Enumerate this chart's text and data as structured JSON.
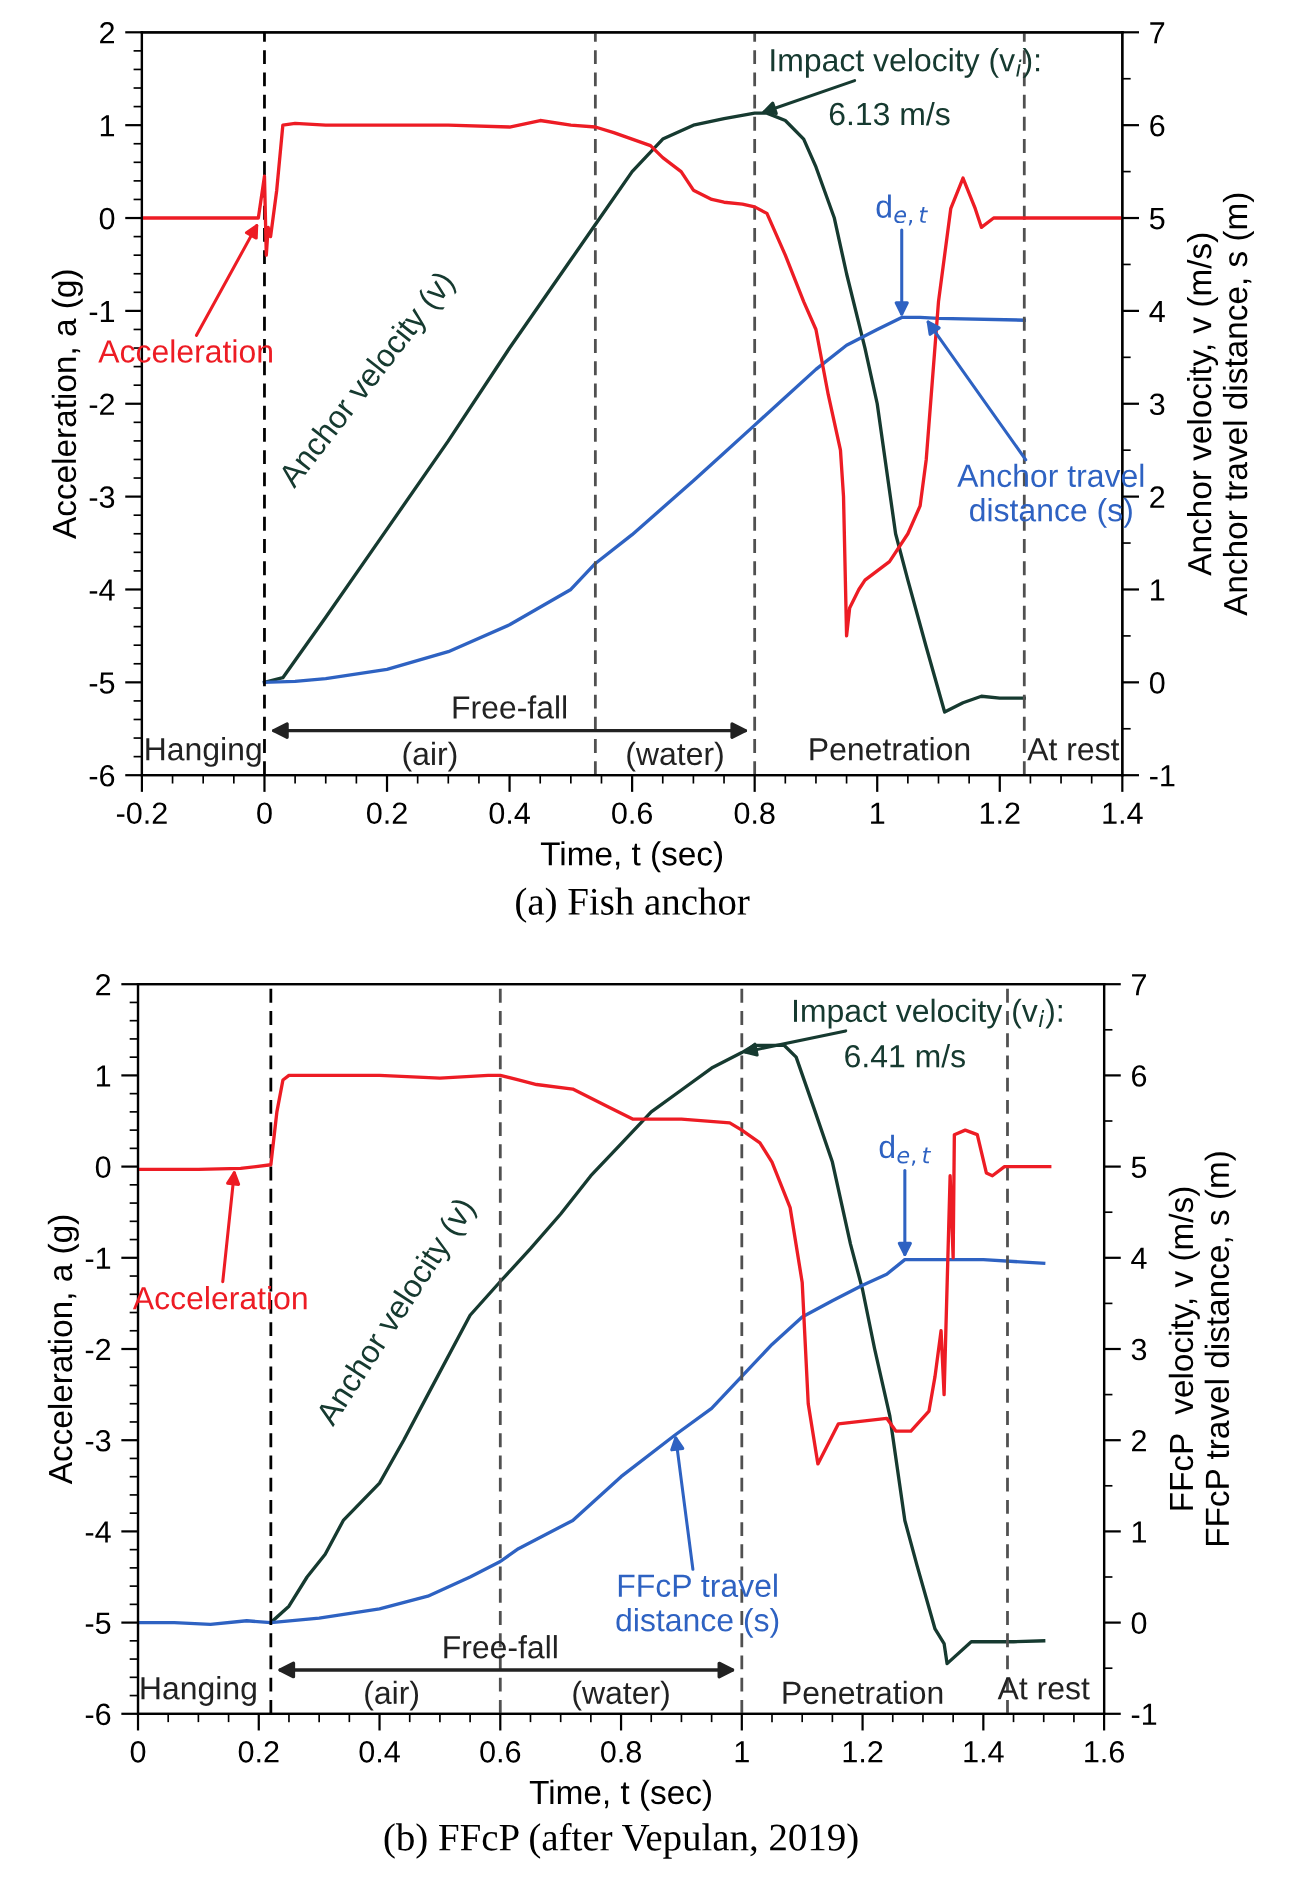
{
  "chart_data": [
    {
      "type": "line",
      "title": "(a) Fish anchor",
      "xlabel": "Time, t (sec)",
      "ylabel": "Acceleration, a (g)",
      "y2label": "Anchor velocity, v (m/s)\nAnchor travel distance, s (m)",
      "xlim": [
        -0.2,
        1.4
      ],
      "xticks": [
        -0.2,
        0,
        0.2,
        0.4,
        0.6,
        0.8,
        1,
        1.2,
        1.4
      ],
      "ylim": [
        -6,
        2
      ],
      "yticks": [
        -6,
        -5,
        -4,
        -3,
        -2,
        -1,
        0,
        1,
        2
      ],
      "y2lim": [
        -1,
        7
      ],
      "y2ticks": [
        -1,
        0,
        1,
        2,
        3,
        4,
        5,
        6,
        7
      ],
      "grid": false,
      "legend": false,
      "line_style": "solid",
      "marker": "none",
      "series": [
        {
          "color": "#ed1c24",
          "x": [
            -0.2,
            -0.1,
            -0.01,
            0,
            0.003,
            0.006,
            0.01,
            0.02,
            0.03,
            0.05,
            0.1,
            0.2,
            0.3,
            0.4,
            0.45,
            0.5,
            0.54,
            0.57,
            0.6,
            0.63,
            0.65,
            0.68,
            0.7,
            0.73,
            0.75,
            0.78,
            0.8,
            0.82,
            0.85,
            0.88,
            0.9,
            0.92,
            0.94,
            0.945,
            0.95,
            0.955,
            0.97,
            0.98,
            1.0,
            1.02,
            1.03,
            1.05,
            1.07,
            1.08,
            1.1,
            1.12,
            1.14,
            1.16,
            1.17,
            1.19,
            1.22,
            1.3,
            1.4
          ],
          "values": [
            0,
            0,
            0,
            0.45,
            -0.4,
            -0.1,
            -0.2,
            0.3,
            1.0,
            1.02,
            1.0,
            1.0,
            1.0,
            0.98,
            1.05,
            1.0,
            0.98,
            0.92,
            0.85,
            0.78,
            0.65,
            0.5,
            0.3,
            0.2,
            0.17,
            0.15,
            0.12,
            0.05,
            -0.4,
            -0.9,
            -1.2,
            -1.9,
            -2.5,
            -3.0,
            -4.5,
            -4.2,
            -4.0,
            -3.9,
            -3.8,
            -3.7,
            -3.6,
            -3.4,
            -3.1,
            -2.6,
            -0.9,
            0.1,
            0.43,
            0.1,
            -0.1,
            0,
            0,
            0,
            0
          ]
        },
        {
          "color": "#163a30",
          "axis": "y2",
          "x": [
            0,
            0.03,
            0.1,
            0.2,
            0.3,
            0.4,
            0.5,
            0.54,
            0.6,
            0.65,
            0.7,
            0.75,
            0.8,
            0.82,
            0.85,
            0.88,
            0.9,
            0.93,
            0.95,
            0.98,
            1.0,
            1.03,
            1.05,
            1.08,
            1.11,
            1.14,
            1.17,
            1.2,
            1.24
          ],
          "values": [
            0,
            0.05,
            0.7,
            1.65,
            2.6,
            3.6,
            4.55,
            4.93,
            5.5,
            5.85,
            6.0,
            6.07,
            6.13,
            6.13,
            6.05,
            5.85,
            5.55,
            5.0,
            4.4,
            3.6,
            3.0,
            1.6,
            1.1,
            0.38,
            -0.32,
            -0.22,
            -0.15,
            -0.17,
            -0.17
          ]
        },
        {
          "color": "#2e62c2",
          "axis": "y2",
          "x": [
            0,
            0.05,
            0.1,
            0.2,
            0.3,
            0.4,
            0.5,
            0.54,
            0.6,
            0.7,
            0.75,
            0.8,
            0.85,
            0.9,
            0.95,
            1.0,
            1.04,
            1.07,
            1.1,
            1.24
          ],
          "values": [
            0,
            0.01,
            0.04,
            0.14,
            0.33,
            0.62,
            1.0,
            1.28,
            1.59,
            2.17,
            2.47,
            2.77,
            3.07,
            3.37,
            3.63,
            3.8,
            3.93,
            3.93,
            3.92,
            3.9
          ]
        }
      ],
      "ref_lines": [
        {
          "axis": "x",
          "value": 0,
          "color": "#000000",
          "line_style": "dashed"
        },
        {
          "axis": "x",
          "value": 0.54,
          "color": "#505050",
          "line_style": "dashed"
        },
        {
          "axis": "x",
          "value": 0.8,
          "color": "#505050",
          "line_style": "dashed"
        },
        {
          "axis": "x",
          "value": 1.24,
          "color": "#505050",
          "line_style": "dashed"
        }
      ],
      "annotations": [
        {
          "text": "Acceleration",
          "x": -0.01,
          "y": -0.05
        },
        {
          "text": "Impact velocity (v$_{i}$):",
          "x": 0.81,
          "y": 1.13
        },
        "6.13 m/s",
        "Anchor velocity (v)",
        {
          "text": "d$_{e,t}$",
          "x": 1.04,
          "y": -1.07
        },
        {
          "text": "Anchor travel\ndistance (s)",
          "x": 1.08,
          "y": -1.09
        },
        "Hanging",
        "Free-fall",
        "(air)",
        "(water)",
        "Penetration",
        "At rest"
      ]
    },
    {
      "type": "line",
      "title": "(b) FFcP (after Vepulan, 2019)",
      "xlabel": "Time, t (sec)",
      "ylabel": "Acceleration, a (g)",
      "y2label": "FFcP  velocity, v (m/s)\nFFcP travel distance, s (m)",
      "xlim": [
        0,
        1.6
      ],
      "xticks": [
        0,
        0.2,
        0.4,
        0.6,
        0.8,
        1,
        1.2,
        1.4,
        1.6
      ],
      "ylim": [
        -6,
        2
      ],
      "yticks": [
        -6,
        -5,
        -4,
        -3,
        -2,
        -1,
        0,
        1,
        2
      ],
      "y2lim": [
        -1,
        7
      ],
      "y2ticks": [
        -1,
        0,
        1,
        2,
        3,
        4,
        5,
        6,
        7
      ],
      "grid": false,
      "legend": false,
      "line_style": "solid",
      "marker": "none",
      "series": [
        {
          "color": "#ed1c24",
          "x": [
            0,
            0.1,
            0.17,
            0.22,
            0.23,
            0.24,
            0.25,
            0.3,
            0.4,
            0.5,
            0.58,
            0.6,
            0.63,
            0.66,
            0.72,
            0.78,
            0.82,
            0.85,
            0.9,
            0.98,
            1.0,
            1.03,
            1.05,
            1.08,
            1.1,
            1.11,
            1.126,
            1.16,
            1.24,
            1.255,
            1.28,
            1.31,
            1.32,
            1.33,
            1.335,
            1.345,
            1.35,
            1.352,
            1.37,
            1.39,
            1.405,
            1.415,
            1.435,
            1.51
          ],
          "values": [
            -0.03,
            -0.03,
            -0.02,
            0.02,
            0.6,
            0.95,
            1.0,
            1.0,
            1.0,
            0.97,
            1.0,
            1.0,
            0.95,
            0.9,
            0.85,
            0.65,
            0.52,
            0.52,
            0.52,
            0.48,
            0.4,
            0.26,
            0.05,
            -0.45,
            -1.27,
            -2.6,
            -3.26,
            -2.82,
            -2.76,
            -2.9,
            -2.9,
            -2.68,
            -2.3,
            -1.8,
            -2.5,
            -0.1,
            -1.0,
            0.35,
            0.4,
            0.35,
            -0.07,
            -0.1,
            0,
            0
          ]
        },
        {
          "color": "#163a30",
          "axis": "y2",
          "x": [
            0.22,
            0.25,
            0.28,
            0.31,
            0.34,
            0.4,
            0.44,
            0.48,
            0.55,
            0.6,
            0.65,
            0.7,
            0.75,
            0.8,
            0.85,
            0.9,
            0.95,
            1.0,
            1.02,
            1.07,
            1.09,
            1.12,
            1.15,
            1.18,
            1.2,
            1.22,
            1.245,
            1.27,
            1.29,
            1.32,
            1.335,
            1.34,
            1.38,
            1.45,
            1.5
          ],
          "values": [
            0,
            0.18,
            0.5,
            0.75,
            1.12,
            1.53,
            2.0,
            2.5,
            3.37,
            3.74,
            4.1,
            4.48,
            4.9,
            5.25,
            5.6,
            5.84,
            6.08,
            6.25,
            6.33,
            6.33,
            6.2,
            5.63,
            5.05,
            4.15,
            3.65,
            3.0,
            2.27,
            1.12,
            0.63,
            -0.07,
            -0.23,
            -0.45,
            -0.21,
            -0.21,
            -0.2
          ]
        },
        {
          "color": "#2e62c2",
          "axis": "y2",
          "x": [
            0,
            0.06,
            0.12,
            0.18,
            0.22,
            0.3,
            0.4,
            0.48,
            0.55,
            0.6,
            0.63,
            0.72,
            0.8,
            0.89,
            0.95,
            1.0,
            1.05,
            1.1,
            1.15,
            1.2,
            1.24,
            1.27,
            1.3,
            1.4,
            1.5
          ],
          "values": [
            0,
            0,
            -0.02,
            0.02,
            0,
            0.05,
            0.15,
            0.29,
            0.5,
            0.67,
            0.81,
            1.12,
            1.6,
            2.06,
            2.35,
            2.7,
            3.05,
            3.35,
            3.53,
            3.7,
            3.82,
            3.98,
            3.98,
            3.98,
            3.94
          ]
        }
      ],
      "ref_lines": [
        {
          "axis": "x",
          "value": 0.22,
          "color": "#000000",
          "line_style": "dashed"
        },
        {
          "axis": "x",
          "value": 0.6,
          "color": "#505050",
          "line_style": "dashed"
        },
        {
          "axis": "x",
          "value": 1.0,
          "color": "#505050",
          "line_style": "dashed"
        },
        {
          "axis": "x",
          "value": 1.44,
          "color": "#505050",
          "line_style": "dashed"
        }
      ],
      "annotations": [
        {
          "text": "Acceleration",
          "x": 0.16,
          "y": -0.03
        },
        {
          "text": "Impact velocity (v$_{i}$):",
          "x": 1.0,
          "y": 1.25
        },
        "6.41 m/s",
        "Anchor velocity (v)",
        {
          "text": "d$_{e,t}$",
          "x": 1.27,
          "y": -1.0
        },
        {
          "text": "FFcP travel\ndistance (s)",
          "x": 0.89,
          "y": -2.94
        },
        "Hanging",
        "Free-fall",
        "(air)",
        "(water)",
        "Penetration",
        "At rest"
      ]
    }
  ]
}
